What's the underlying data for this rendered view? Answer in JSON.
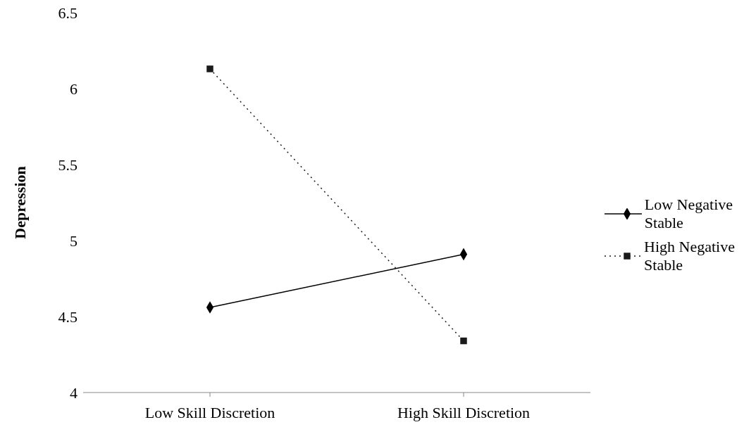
{
  "chart_data": {
    "type": "line",
    "ylabel": "Depression",
    "categories": [
      "Low Skill Discretion",
      "High Skill Discretion"
    ],
    "series": [
      {
        "name": "Low Negative Stable",
        "color": "#000000",
        "values": [
          4.56,
          4.91
        ],
        "marker": "diamond",
        "line_style": "solid"
      },
      {
        "name": "High Negative Stable",
        "color": "#1a1a1a",
        "values": [
          6.13,
          4.34
        ],
        "marker": "square",
        "line_style": "dotted"
      }
    ],
    "ylim": [
      4,
      6.5
    ],
    "yticks": [
      4,
      4.5,
      5,
      5.5,
      6,
      6.5
    ],
    "grid": false,
    "legend": "right"
  }
}
